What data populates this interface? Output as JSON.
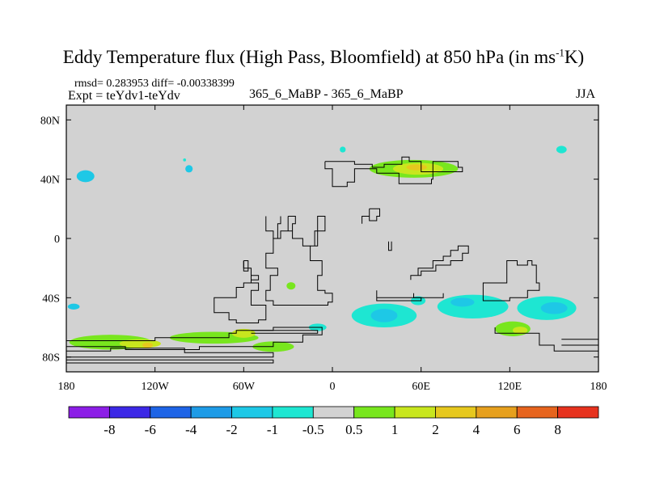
{
  "title_main": "Eddy Temperature flux (High Pass, Bloomfield) at 850 hPa (in ms",
  "title_sup": "-1",
  "title_end": "K)",
  "stats_text": "rmsd= 0.283953 diff= -0.00338399",
  "expt_text": "Expt = teYdv1-teYdv",
  "case_text": "365_6_MaBP - 365_6_MaBP",
  "season_text": "JJA",
  "colors": {
    "background_fill": "#d2d2d2",
    "frame": "#000000",
    "coast": "#000000"
  },
  "chart_data": {
    "type": "heatmap",
    "title": "Eddy Temperature flux (High Pass, Bloomfield) at 850 hPa (in ms-1K)",
    "projection": "cylindrical-equidistant",
    "xlim": [
      -180,
      180
    ],
    "ylim": [
      -90,
      90
    ],
    "x_ticks": [
      {
        "value": -180,
        "label": "180"
      },
      {
        "value": -120,
        "label": "120W"
      },
      {
        "value": -60,
        "label": "60W"
      },
      {
        "value": 0,
        "label": "0"
      },
      {
        "value": 60,
        "label": "60E"
      },
      {
        "value": 120,
        "label": "120E"
      },
      {
        "value": 180,
        "label": "180"
      }
    ],
    "y_ticks": [
      {
        "value": 80,
        "label": "80N"
      },
      {
        "value": 40,
        "label": "40N"
      },
      {
        "value": 0,
        "label": "0"
      },
      {
        "value": -40,
        "label": "40S"
      },
      {
        "value": -80,
        "label": "80S"
      }
    ],
    "colorbar": {
      "colors": [
        "#8c1ee6",
        "#3c28e6",
        "#1e64e6",
        "#1e9be6",
        "#1ec8e6",
        "#1ee6d2",
        "#d2d2d2",
        "#78e61e",
        "#c8e61e",
        "#e6c81e",
        "#e6a01e",
        "#e6641e",
        "#e6321e"
      ],
      "tick_labels": [
        "-8",
        "-6",
        "-4",
        "-2",
        "-1",
        "-0.5",
        "0.5",
        "1",
        "2",
        "4",
        "6",
        "8"
      ]
    },
    "anomaly_regions": [
      {
        "lon": -167,
        "lat": 42,
        "rx": 6,
        "ry": 4,
        "level": "-1"
      },
      {
        "lon": -97,
        "lat": 47,
        "rx": 2.5,
        "ry": 2.5,
        "level": "-1"
      },
      {
        "lon": -175,
        "lat": -46,
        "rx": 4,
        "ry": 2,
        "level": "-1"
      },
      {
        "lon": -150,
        "lat": -70,
        "rx": 28,
        "ry": 5,
        "level": "0.5"
      },
      {
        "lon": -80,
        "lat": -67,
        "rx": 30,
        "ry": 4,
        "level": "0.5"
      },
      {
        "lon": -40,
        "lat": -73,
        "rx": 14,
        "ry": 3.5,
        "level": "0.5"
      },
      {
        "lon": -130,
        "lat": -71,
        "rx": 14,
        "ry": 3,
        "level": "1"
      },
      {
        "lon": -60,
        "lat": -64,
        "rx": 8,
        "ry": 3,
        "level": "1"
      },
      {
        "lon": -125,
        "lat": -72,
        "rx": 3.5,
        "ry": 1.8,
        "level": "2"
      },
      {
        "lon": -28,
        "lat": -32,
        "rx": 3,
        "ry": 2.5,
        "level": "0.5"
      },
      {
        "lon": -10,
        "lat": -60,
        "rx": 6,
        "ry": 2.5,
        "level": "-0.5"
      },
      {
        "lon": 35,
        "lat": -52,
        "rx": 22,
        "ry": 8,
        "level": "-0.5"
      },
      {
        "lon": 35,
        "lat": -52,
        "rx": 9,
        "ry": 4.5,
        "level": "-1"
      },
      {
        "lon": 58,
        "lat": -42,
        "rx": 5,
        "ry": 3,
        "level": "-0.5"
      },
      {
        "lon": 95,
        "lat": -46,
        "rx": 24,
        "ry": 8,
        "level": "-0.5"
      },
      {
        "lon": 88,
        "lat": -43,
        "rx": 8,
        "ry": 3,
        "level": "-1"
      },
      {
        "lon": 145,
        "lat": -47,
        "rx": 20,
        "ry": 8,
        "level": "-0.5"
      },
      {
        "lon": 150,
        "lat": -47,
        "rx": 9,
        "ry": 4,
        "level": "-1"
      },
      {
        "lon": 122,
        "lat": -61,
        "rx": 12,
        "ry": 5,
        "level": "0.5"
      },
      {
        "lon": 127,
        "lat": -62,
        "rx": 5,
        "ry": 2.5,
        "level": "1"
      },
      {
        "lon": 55,
        "lat": 47,
        "rx": 30,
        "ry": 6,
        "level": "0.5"
      },
      {
        "lon": 58,
        "lat": 47,
        "rx": 17,
        "ry": 4,
        "level": "1"
      },
      {
        "lon": 57,
        "lat": 48,
        "rx": 7,
        "ry": 2,
        "level": "2"
      },
      {
        "lon": 7,
        "lat": 60,
        "rx": 2,
        "ry": 2,
        "level": "-0.5"
      },
      {
        "lon": 155,
        "lat": 60,
        "rx": 3.5,
        "ry": 2.5,
        "level": "-0.5"
      },
      {
        "lon": -100,
        "lat": 53,
        "rx": 1,
        "ry": 1,
        "level": "-0.5"
      }
    ],
    "coastlines": [
      [
        [
          -5,
          52
        ],
        [
          -5,
          47
        ],
        [
          0,
          47
        ],
        [
          0,
          35
        ],
        [
          10,
          35
        ],
        [
          10,
          38
        ],
        [
          15,
          38
        ],
        [
          15,
          47
        ],
        [
          30,
          47
        ],
        [
          30,
          44
        ],
        [
          45,
          44
        ],
        [
          45,
          37
        ],
        [
          67,
          37
        ],
        [
          67,
          40
        ],
        [
          68,
          40
        ],
        [
          68,
          52
        ],
        [
          85,
          52
        ],
        [
          85,
          48
        ],
        [
          88,
          48
        ],
        [
          88,
          45
        ],
        [
          60,
          45
        ],
        [
          60,
          52
        ],
        [
          52,
          52
        ],
        [
          52,
          55
        ],
        [
          47,
          55
        ],
        [
          47,
          50
        ],
        [
          35,
          50
        ],
        [
          35,
          48
        ],
        [
          27,
          48
        ],
        [
          27,
          50
        ],
        [
          15,
          50
        ],
        [
          15,
          52
        ],
        [
          -5,
          52
        ]
      ],
      [
        [
          -30,
          15
        ],
        [
          -30,
          5
        ],
        [
          -27,
          5
        ],
        [
          -27,
          0
        ],
        [
          -20,
          0
        ],
        [
          -20,
          -5
        ],
        [
          -15,
          -5
        ],
        [
          -15,
          -15
        ],
        [
          -7,
          -15
        ],
        [
          -7,
          -25
        ],
        [
          -10,
          -25
        ],
        [
          -10,
          -35
        ],
        [
          -5,
          -35
        ],
        [
          -5,
          -37
        ],
        [
          0,
          -37
        ],
        [
          0,
          -43
        ],
        [
          -3,
          -43
        ],
        [
          -3,
          -45
        ],
        [
          -40,
          -45
        ],
        [
          -40,
          -42
        ],
        [
          -45,
          -42
        ],
        [
          -45,
          -35
        ],
        [
          -42,
          -35
        ],
        [
          -42,
          -25
        ],
        [
          -37,
          -25
        ],
        [
          -37,
          -20
        ],
        [
          -45,
          -20
        ],
        [
          -45,
          -10
        ],
        [
          -40,
          -10
        ],
        [
          -40,
          0
        ],
        [
          -35,
          0
        ],
        [
          -35,
          5
        ],
        [
          -27,
          5
        ],
        [
          -27,
          10
        ],
        [
          -25,
          10
        ],
        [
          -25,
          15
        ],
        [
          -30,
          15
        ]
      ],
      [
        [
          -15,
          -5
        ],
        [
          -10,
          -5
        ],
        [
          -10,
          5
        ],
        [
          -5,
          5
        ],
        [
          -5,
          15
        ],
        [
          -10,
          15
        ],
        [
          -10,
          5
        ],
        [
          -12,
          5
        ],
        [
          -12,
          -5
        ]
      ],
      [
        [
          -35,
          15
        ],
        [
          -35,
          10
        ],
        [
          -37,
          10
        ],
        [
          -37,
          0
        ],
        [
          -40,
          0
        ],
        [
          -40,
          5
        ],
        [
          -45,
          5
        ],
        [
          -45,
          15
        ]
      ],
      [
        [
          -60,
          -15
        ],
        [
          -60,
          -20
        ],
        [
          -55,
          -20
        ],
        [
          -55,
          -25
        ],
        [
          -50,
          -25
        ],
        [
          -50,
          -28
        ],
        [
          -55,
          -28
        ],
        [
          -55,
          -30
        ],
        [
          -60,
          -30
        ],
        [
          -60,
          -33
        ],
        [
          -65,
          -33
        ],
        [
          -65,
          -40
        ],
        [
          -80,
          -40
        ],
        [
          -80,
          -50
        ],
        [
          -70,
          -50
        ],
        [
          -70,
          -55
        ],
        [
          -65,
          -55
        ],
        [
          -65,
          -57
        ],
        [
          -50,
          -57
        ],
        [
          -50,
          -55
        ],
        [
          -45,
          -55
        ],
        [
          -45,
          -45
        ],
        [
          -55,
          -45
        ],
        [
          -55,
          -35
        ],
        [
          -50,
          -35
        ],
        [
          -50,
          -30
        ],
        [
          -55,
          -30
        ],
        [
          -55,
          -20
        ],
        [
          -60,
          -20
        ]
      ],
      [
        [
          -60,
          -15
        ],
        [
          -60,
          -22
        ],
        [
          -57,
          -22
        ],
        [
          -57,
          -15
        ],
        [
          -60,
          -15
        ]
      ],
      [
        [
          -180,
          -73
        ],
        [
          -180,
          -69
        ],
        [
          -120,
          -69
        ],
        [
          -120,
          -67
        ],
        [
          -70,
          -67
        ],
        [
          -70,
          -64
        ],
        [
          -65,
          -64
        ],
        [
          -65,
          -62
        ],
        [
          -40,
          -62
        ],
        [
          -40,
          -60
        ],
        [
          -7,
          -60
        ],
        [
          -7,
          -65
        ],
        [
          -20,
          -65
        ],
        [
          -20,
          -70
        ],
        [
          -40,
          -70
        ],
        [
          -40,
          -73
        ],
        [
          -90,
          -73
        ],
        [
          -90,
          -75
        ],
        [
          -140,
          -75
        ],
        [
          -140,
          -73
        ],
        [
          -180,
          -73
        ]
      ],
      [
        [
          -180,
          -78
        ],
        [
          -180,
          -76
        ],
        [
          -150,
          -76
        ],
        [
          -150,
          -74
        ],
        [
          -100,
          -74
        ],
        [
          -100,
          -77
        ],
        [
          -40,
          -77
        ],
        [
          -40,
          -80
        ],
        [
          -180,
          -80
        ]
      ],
      [
        [
          -55,
          -62
        ],
        [
          -10,
          -62
        ],
        [
          -10,
          -64
        ],
        [
          -55,
          -64
        ]
      ],
      [
        [
          -180,
          -82
        ],
        [
          -40,
          -82
        ],
        [
          -40,
          -84
        ],
        [
          -180,
          -84
        ]
      ],
      [
        [
          30,
          -35
        ],
        [
          30,
          -40
        ],
        [
          60,
          -40
        ],
        [
          60,
          -42
        ],
        [
          30,
          -42
        ],
        [
          30,
          -35
        ]
      ],
      [
        [
          55,
          -37
        ],
        [
          55,
          -40
        ],
        [
          75,
          -40
        ],
        [
          75,
          -37
        ]
      ],
      [
        [
          53,
          -28
        ],
        [
          53,
          -25
        ],
        [
          60,
          -25
        ],
        [
          60,
          -22
        ],
        [
          70,
          -22
        ],
        [
          70,
          -18
        ],
        [
          80,
          -18
        ],
        [
          80,
          -15
        ],
        [
          88,
          -15
        ],
        [
          88,
          -10
        ],
        [
          92,
          -10
        ],
        [
          92,
          -5
        ],
        [
          85,
          -5
        ],
        [
          85,
          -8
        ],
        [
          80,
          -8
        ],
        [
          80,
          -12
        ],
        [
          75,
          -12
        ],
        [
          75,
          -15
        ],
        [
          68,
          -15
        ],
        [
          68,
          -20
        ],
        [
          58,
          -20
        ],
        [
          58,
          -25
        ],
        [
          53,
          -25
        ]
      ],
      [
        [
          102,
          -35
        ],
        [
          102,
          -30
        ],
        [
          118,
          -30
        ],
        [
          118,
          -15
        ],
        [
          125,
          -15
        ],
        [
          125,
          -18
        ],
        [
          132,
          -18
        ],
        [
          132,
          -15
        ],
        [
          135,
          -15
        ],
        [
          135,
          -18
        ],
        [
          138,
          -18
        ],
        [
          138,
          -30
        ],
        [
          140,
          -30
        ],
        [
          140,
          -35
        ],
        [
          132,
          -35
        ],
        [
          132,
          -40
        ],
        [
          120,
          -40
        ],
        [
          120,
          -42
        ],
        [
          102,
          -42
        ],
        [
          102,
          -35
        ]
      ],
      [
        [
          110,
          -60
        ],
        [
          110,
          -64
        ],
        [
          140,
          -64
        ],
        [
          140,
          -72
        ],
        [
          150,
          -72
        ],
        [
          150,
          -76
        ],
        [
          180,
          -76
        ]
      ],
      [
        [
          155,
          -68
        ],
        [
          180,
          -68
        ]
      ],
      [
        [
          155,
          -72
        ],
        [
          180,
          -72
        ]
      ],
      [
        [
          25,
          20
        ],
        [
          25,
          12
        ],
        [
          30,
          12
        ],
        [
          30,
          15
        ],
        [
          32,
          15
        ],
        [
          32,
          20
        ],
        [
          25,
          20
        ]
      ],
      [
        [
          20,
          10
        ],
        [
          20,
          15
        ],
        [
          25,
          15
        ]
      ],
      [
        [
          38,
          -2
        ],
        [
          38,
          -8
        ],
        [
          40,
          -8
        ],
        [
          40,
          -2
        ]
      ]
    ]
  }
}
